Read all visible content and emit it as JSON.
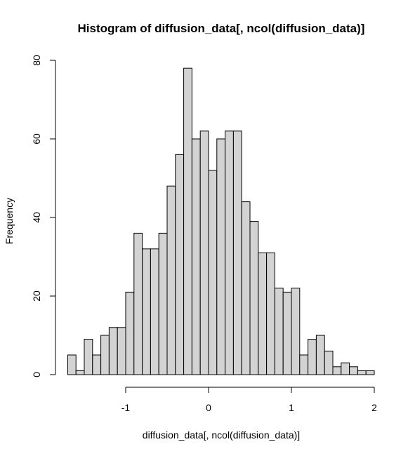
{
  "chart_data": {
    "type": "bar",
    "title": "Histogram of diffusion_data[, ncol(diffusion_data)]",
    "xlabel": "diffusion_data[, ncol(diffusion_data)]",
    "ylabel": "Frequency",
    "bin_width": 0.1,
    "bins_start": -1.7,
    "bins_end": 2.0,
    "values": [
      5,
      1,
      9,
      5,
      10,
      12,
      12,
      21,
      36,
      32,
      32,
      36,
      48,
      56,
      78,
      60,
      62,
      52,
      60,
      62,
      62,
      44,
      39,
      31,
      31,
      22,
      21,
      22,
      5,
      9,
      10,
      6,
      2,
      3,
      2,
      1,
      1
    ],
    "xticks": [
      -1,
      0,
      1,
      2
    ],
    "xtick_labels": [
      "-1",
      "0",
      "1",
      "2"
    ],
    "yticks": [
      0,
      20,
      40,
      60,
      80
    ],
    "ytick_labels": [
      "0",
      "20",
      "40",
      "60",
      "80"
    ],
    "ylim": [
      0,
      80
    ],
    "colors": {
      "bar_fill": "#d3d3d3",
      "bar_stroke": "#000000"
    }
  }
}
